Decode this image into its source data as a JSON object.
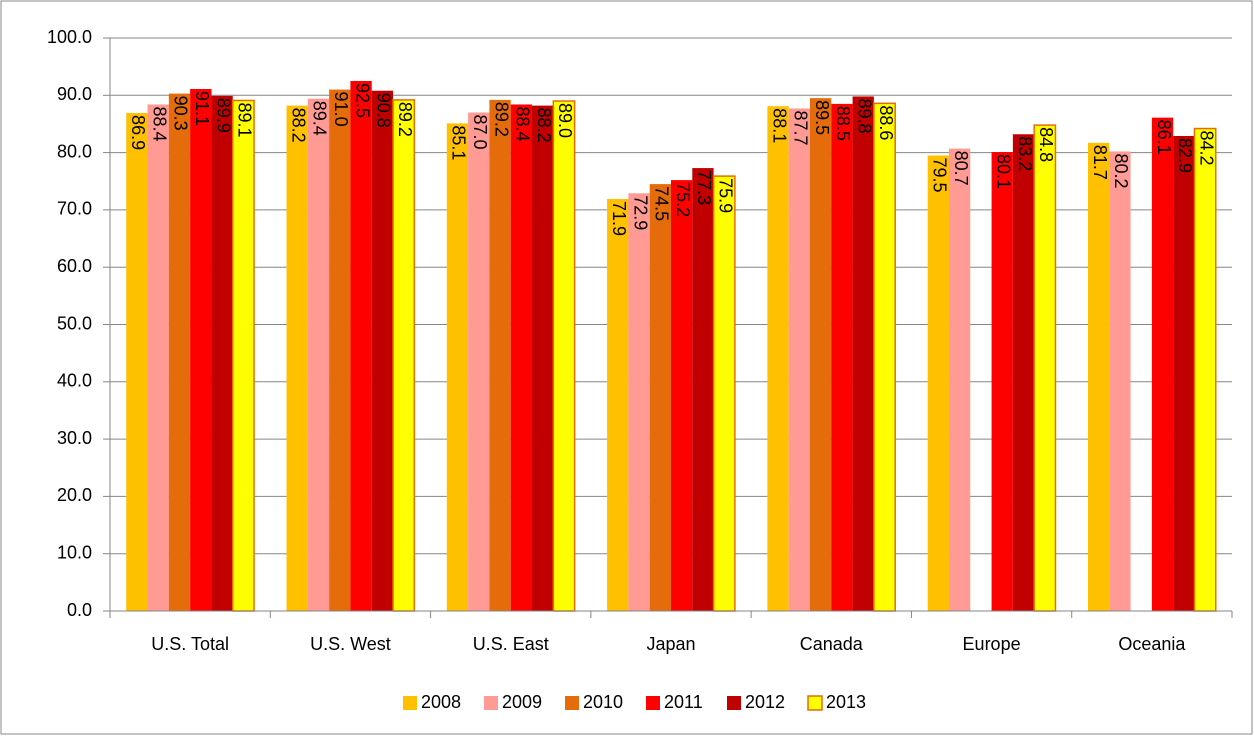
{
  "chart_data": {
    "type": "bar",
    "categories": [
      "U.S. Total",
      "U.S. West",
      "U.S. East",
      "Japan",
      "Canada",
      "Europe",
      "Oceania"
    ],
    "series": [
      {
        "name": "2008",
        "color": "#FFC000",
        "values": [
          86.9,
          88.2,
          85.1,
          71.9,
          88.1,
          79.5,
          81.7
        ],
        "value_labels": [
          "86.9",
          "88.2",
          "85.1",
          "71.9",
          "88.1",
          "79.5",
          "81.7"
        ]
      },
      {
        "name": "2009",
        "color": "#FF9B94",
        "values": [
          88.4,
          89.4,
          87.0,
          72.9,
          87.7,
          80.7,
          80.2
        ],
        "value_labels": [
          "88.4",
          "89.4",
          "87.0",
          "72.9",
          "87.7",
          "80.7",
          "80.2"
        ]
      },
      {
        "name": "2010",
        "color": "#E46C0A",
        "values": [
          90.3,
          91.0,
          89.2,
          74.5,
          89.5,
          null,
          null
        ],
        "value_labels": [
          "90.3",
          "91.0",
          "89.2",
          "74.5",
          "89.5",
          null,
          null
        ]
      },
      {
        "name": "2011",
        "color": "#FF0000",
        "values": [
          91.1,
          92.5,
          88.4,
          75.2,
          88.5,
          80.1,
          86.1
        ],
        "value_labels": [
          "91.1",
          "92.5",
          "88.4",
          "75.2",
          "88.5",
          "80.1",
          "86.1"
        ]
      },
      {
        "name": "2012",
        "color": "#C00000",
        "values": [
          89.9,
          90.8,
          88.2,
          77.3,
          89.8,
          83.2,
          82.9
        ],
        "value_labels": [
          "89.9",
          "90.8",
          "88.2",
          "77.3",
          "89.8",
          "83.2",
          "82.9"
        ]
      },
      {
        "name": "2013",
        "color": "#FFFF00",
        "edgecolor": "#E46C0A",
        "values": [
          89.1,
          89.2,
          89.0,
          75.9,
          88.6,
          84.8,
          84.2
        ],
        "value_labels": [
          "89.1",
          "89.2",
          "89.0",
          "75.9",
          "88.6",
          "84.8",
          "84.2"
        ]
      }
    ],
    "ylim": [
      0,
      100
    ],
    "yticks": [
      {
        "value": 0,
        "label": "0.0"
      },
      {
        "value": 10,
        "label": "10.0"
      },
      {
        "value": 20,
        "label": "20.0"
      },
      {
        "value": 30,
        "label": "30.0"
      },
      {
        "value": 40,
        "label": "40.0"
      },
      {
        "value": 50,
        "label": "50.0"
      },
      {
        "value": 60,
        "label": "60.0"
      },
      {
        "value": 70,
        "label": "70.0"
      },
      {
        "value": 80,
        "label": "80.0"
      },
      {
        "value": 90,
        "label": "90.0"
      },
      {
        "value": {
          "value": 100
        },
        "label": "100.0"
      }
    ],
    "grid": true,
    "legend": "bottom"
  }
}
